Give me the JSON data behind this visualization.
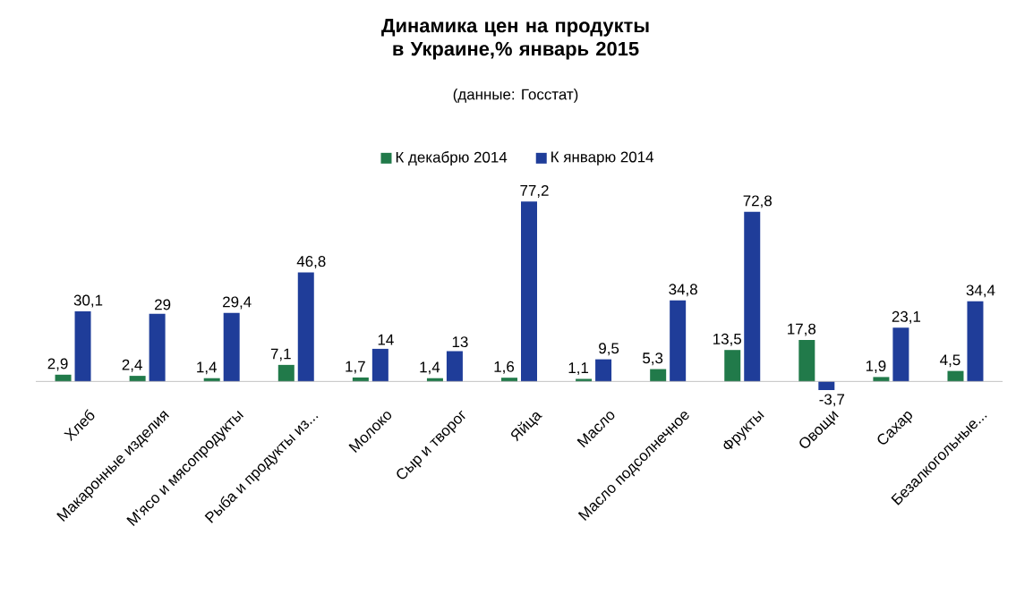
{
  "chart_data": {
    "type": "bar",
    "title": "Динамика цен на продукты в Украине,% январь 2015",
    "subtitle": "(данные: Госстат)",
    "categories": [
      "Хлеб",
      "Макаронные изделия",
      "М'ясо и мясопродукты",
      "Рыба и продукты из...",
      "Молоко",
      "Сыр и творог",
      "Яйца",
      "Масло",
      "Масло подсолнечное",
      "Фрукты",
      "Овощи",
      "Сахар",
      "Безалкогольные..."
    ],
    "series": [
      {
        "name": "К декабрю  2014",
        "color": "#217a4a",
        "values": [
          2.9,
          2.4,
          1.4,
          7.1,
          1.7,
          1.4,
          1.6,
          1.1,
          5.3,
          13.5,
          17.8,
          1.9,
          4.5
        ],
        "value_labels": [
          "2,9",
          "2,4",
          "1,4",
          "7,1",
          "1,7",
          "1,4",
          "1,6",
          "1,1",
          "5,3",
          "13,5",
          "17,8",
          "1,9",
          "4,5"
        ]
      },
      {
        "name": "К январю 2014",
        "color": "#1f3d99",
        "values": [
          30.1,
          29,
          29.4,
          46.8,
          14,
          13,
          77.2,
          9.5,
          34.8,
          72.8,
          -3.7,
          23.1,
          34.4
        ],
        "value_labels": [
          "30,1",
          "29",
          "29,4",
          "46,8",
          "14",
          "13",
          "77,2",
          "9,5",
          "34,8",
          "72,8",
          "-3,7",
          "23,1",
          "34,4"
        ]
      }
    ],
    "legend": "top"
  }
}
